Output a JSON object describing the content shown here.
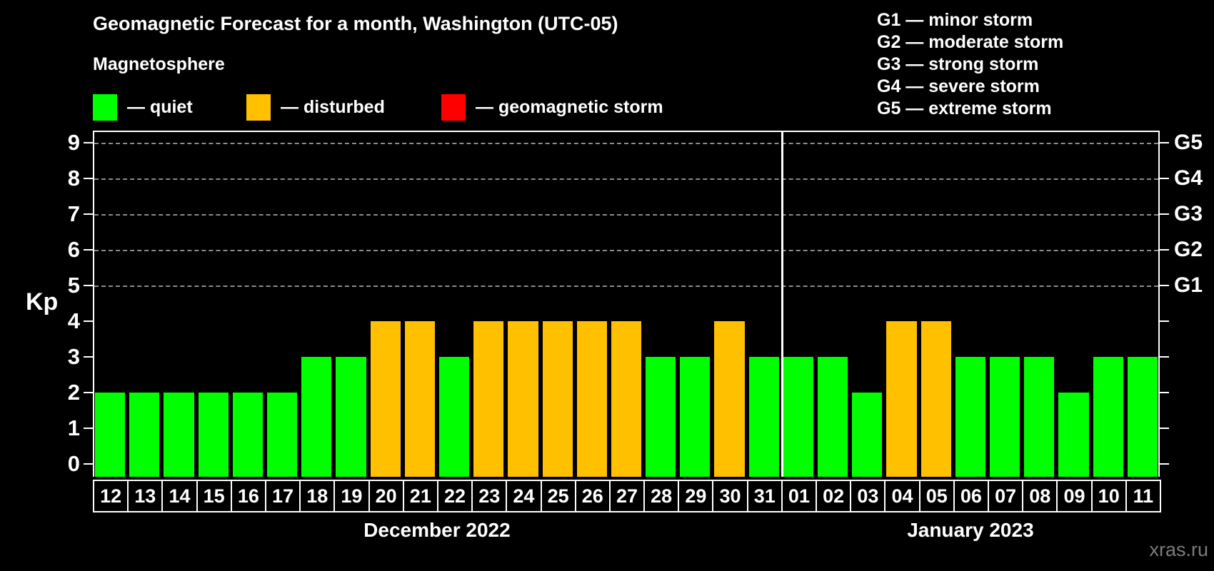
{
  "title": "Geomagnetic Forecast for a month, Washington (UTC-05)",
  "subtitle": "Magnetosphere",
  "legend": {
    "items": [
      {
        "name": "quiet",
        "label": "— quiet",
        "color": "#00ff00"
      },
      {
        "name": "disturbed",
        "label": "— disturbed",
        "color": "#ffc000"
      },
      {
        "name": "geomagnetic-storm",
        "label": "— geomagnetic storm",
        "color": "#ff0000"
      }
    ]
  },
  "g_legend": [
    "G1 — minor storm",
    "G2 — moderate storm",
    "G3 — strong storm",
    "G4 — severe storm",
    "G5 — extreme storm"
  ],
  "watermark": "xras.ru",
  "chart_data": {
    "type": "bar",
    "ylabel": "Kp",
    "ylim": [
      0,
      9
    ],
    "yticks": [
      0,
      1,
      2,
      3,
      4,
      5,
      6,
      7,
      8,
      9
    ],
    "gridlines_at": [
      5,
      6,
      7,
      8,
      9
    ],
    "grid_style": "dashed horizontal gridlines only at Kp 5-9",
    "legend_position": "top",
    "right_axis_labels": [
      {
        "level": 5,
        "label": "G1"
      },
      {
        "level": 6,
        "label": "G2"
      },
      {
        "level": 7,
        "label": "G3"
      },
      {
        "level": 8,
        "label": "G4"
      },
      {
        "level": 9,
        "label": "G5"
      }
    ],
    "color_rules": {
      "disturbed_min": 4,
      "storm_min": 5
    },
    "colors": {
      "quiet": "#00ff00",
      "disturbed": "#ffc000",
      "storm": "#ff0000"
    },
    "months": [
      {
        "label": "December 2022",
        "days": [
          "12",
          "13",
          "14",
          "15",
          "16",
          "17",
          "18",
          "19",
          "20",
          "21",
          "22",
          "23",
          "24",
          "25",
          "26",
          "27",
          "28",
          "29",
          "30",
          "31"
        ],
        "values": [
          2,
          2,
          2,
          2,
          2,
          2,
          3,
          3,
          4,
          4,
          3,
          4,
          4,
          4,
          4,
          4,
          3,
          3,
          4,
          3
        ]
      },
      {
        "label": "January 2023",
        "days": [
          "01",
          "02",
          "03",
          "04",
          "05",
          "06",
          "07",
          "08",
          "09",
          "10",
          "11"
        ],
        "values": [
          3,
          3,
          2,
          4,
          4,
          3,
          3,
          3,
          2,
          3,
          3
        ]
      }
    ]
  }
}
